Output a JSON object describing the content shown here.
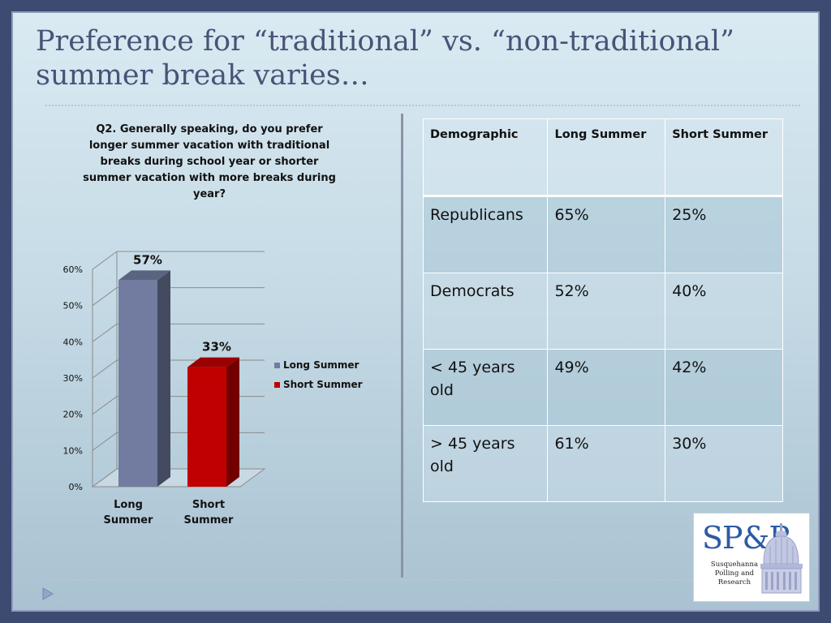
{
  "slide": {
    "title": "Preference for “traditional” vs. “non-traditional” summer break varies…"
  },
  "chart_data": {
    "type": "bar",
    "title": "Q2. Generally speaking, do you prefer longer summer vacation with traditional breaks during school year or shorter summer vacation with more breaks during year?",
    "categories": [
      "Long Summer",
      "Short Summer"
    ],
    "values": [
      57,
      33
    ],
    "data_labels": [
      "57%",
      "33%"
    ],
    "ylim": [
      0,
      60
    ],
    "yticks": [
      "0%",
      "10%",
      "20%",
      "30%",
      "40%",
      "50%",
      "60%"
    ],
    "legend": [
      "Long Summer",
      "Short Summer"
    ],
    "legend_position": "right",
    "colors": [
      "#717ca0",
      "#c00000"
    ],
    "grid": true,
    "xlabel": "",
    "ylabel": ""
  },
  "table": {
    "headers": [
      "Demographic",
      "Long Summer",
      "Short Summer"
    ],
    "rows": [
      [
        "Republicans",
        "65%",
        "25%"
      ],
      [
        "Democrats",
        "52%",
        "40%"
      ],
      [
        "< 45 years old",
        "49%",
        "42%"
      ],
      [
        "> 45 years old",
        "61%",
        "30%"
      ]
    ]
  },
  "logo": {
    "mark": "SP&R",
    "caption_line1": "Susquehanna",
    "caption_line2": "Polling and",
    "caption_line3": "Research",
    "icon": "capitol-dome-icon"
  },
  "nav": {
    "icon": "play-arrow-icon"
  }
}
